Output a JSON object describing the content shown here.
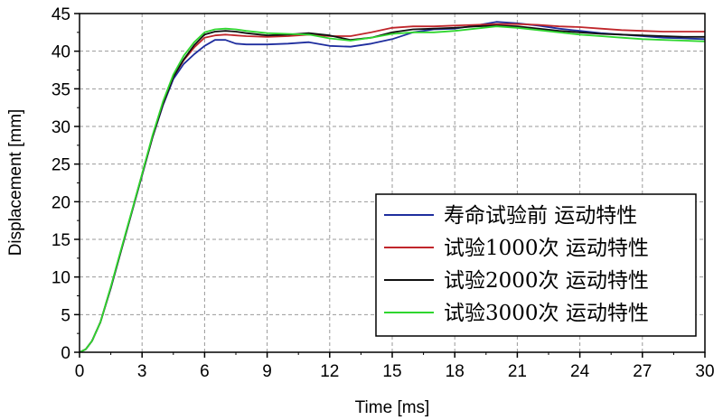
{
  "chart_data": {
    "type": "line",
    "title": "",
    "xlabel": "Time [ms]",
    "ylabel": "Displacement [mm]",
    "xlim": [
      0,
      30
    ],
    "ylim": [
      0,
      45
    ],
    "xticks": [
      0,
      3,
      6,
      9,
      12,
      15,
      18,
      21,
      24,
      27,
      30
    ],
    "yticks": [
      0,
      5,
      10,
      15,
      20,
      25,
      30,
      35,
      40,
      45
    ],
    "grid": true,
    "legend_position": "bottom-right",
    "series": [
      {
        "name": "寿命试验前 运动特性",
        "color": "#1f2e9e",
        "x": [
          0,
          0.3,
          0.6,
          1,
          1.5,
          2,
          2.5,
          3,
          3.5,
          4,
          4.5,
          5,
          5.5,
          6,
          6.5,
          7,
          7.5,
          8,
          9,
          10,
          11,
          12,
          13,
          14,
          15,
          16,
          17,
          18,
          19,
          20,
          21,
          22,
          23,
          24,
          25,
          26,
          27,
          28,
          29,
          30
        ],
        "y": [
          0,
          0.4,
          1.5,
          4,
          8.5,
          13.5,
          18.5,
          23.5,
          28.5,
          32.8,
          36.3,
          38.3,
          39.6,
          40.7,
          41.5,
          41.5,
          41.0,
          40.9,
          40.9,
          41.0,
          41.2,
          40.7,
          40.6,
          41.0,
          41.6,
          42.5,
          42.9,
          43.0,
          43.4,
          43.9,
          43.7,
          43.4,
          43.0,
          42.7,
          42.4,
          42.2,
          42.0,
          41.8,
          41.7,
          41.6
        ]
      },
      {
        "name": "试验1000次 运动特性",
        "color": "#c0262b",
        "x": [
          0,
          0.3,
          0.6,
          1,
          1.5,
          2,
          2.5,
          3,
          3.5,
          4,
          4.5,
          5,
          5.5,
          6,
          6.5,
          7,
          7.5,
          8,
          9,
          10,
          11,
          12,
          13,
          14,
          15,
          16,
          17,
          18,
          19,
          20,
          21,
          22,
          23,
          24,
          25,
          26,
          27,
          28,
          29,
          30
        ],
        "y": [
          0,
          0.4,
          1.5,
          4,
          8.6,
          13.6,
          18.6,
          23.6,
          28.6,
          33.0,
          36.6,
          38.8,
          40.5,
          41.8,
          42.1,
          42.2,
          42.1,
          42.0,
          41.9,
          42.0,
          42.2,
          42.0,
          42.0,
          42.5,
          43.1,
          43.3,
          43.3,
          43.4,
          43.5,
          43.6,
          43.6,
          43.5,
          43.3,
          43.2,
          43.0,
          42.8,
          42.7,
          42.6,
          42.6,
          42.6
        ]
      },
      {
        "name": "试验2000次 运动特性",
        "color": "#111111",
        "x": [
          0,
          0.3,
          0.6,
          1,
          1.5,
          2,
          2.5,
          3,
          3.5,
          4,
          4.5,
          5,
          5.5,
          6,
          6.5,
          7,
          7.5,
          8,
          9,
          10,
          11,
          12,
          13,
          14,
          15,
          16,
          17,
          18,
          19,
          20,
          21,
          22,
          23,
          24,
          25,
          26,
          27,
          28,
          29,
          30
        ],
        "y": [
          0,
          0.4,
          1.5,
          4,
          8.6,
          13.6,
          18.6,
          23.6,
          28.6,
          33.0,
          36.6,
          38.9,
          40.8,
          42.2,
          42.6,
          42.7,
          42.6,
          42.4,
          42.1,
          42.2,
          42.4,
          42.1,
          41.5,
          41.8,
          42.5,
          42.9,
          43.0,
          43.1,
          43.3,
          43.4,
          43.3,
          43.0,
          42.7,
          42.5,
          42.3,
          42.2,
          42.1,
          42.0,
          41.9,
          41.9
        ]
      },
      {
        "name": "试验3000次 运动特性",
        "color": "#2fd62f",
        "x": [
          0,
          0.3,
          0.6,
          1,
          1.5,
          2,
          2.5,
          3,
          3.5,
          4,
          4.5,
          5,
          5.5,
          6,
          6.5,
          7,
          7.5,
          8,
          9,
          10,
          11,
          12,
          13,
          14,
          15,
          16,
          17,
          18,
          19,
          20,
          21,
          22,
          23,
          24,
          25,
          26,
          27,
          28,
          29,
          30
        ],
        "y": [
          0,
          0.4,
          1.5,
          4,
          8.7,
          13.7,
          18.7,
          23.7,
          28.8,
          33.3,
          36.9,
          39.4,
          41.2,
          42.5,
          42.9,
          43.0,
          42.9,
          42.7,
          42.4,
          42.3,
          42.2,
          41.7,
          41.4,
          41.8,
          42.3,
          42.5,
          42.5,
          42.7,
          43.0,
          43.3,
          43.1,
          42.8,
          42.5,
          42.2,
          42.0,
          41.8,
          41.6,
          41.5,
          41.4,
          41.3
        ]
      }
    ]
  }
}
